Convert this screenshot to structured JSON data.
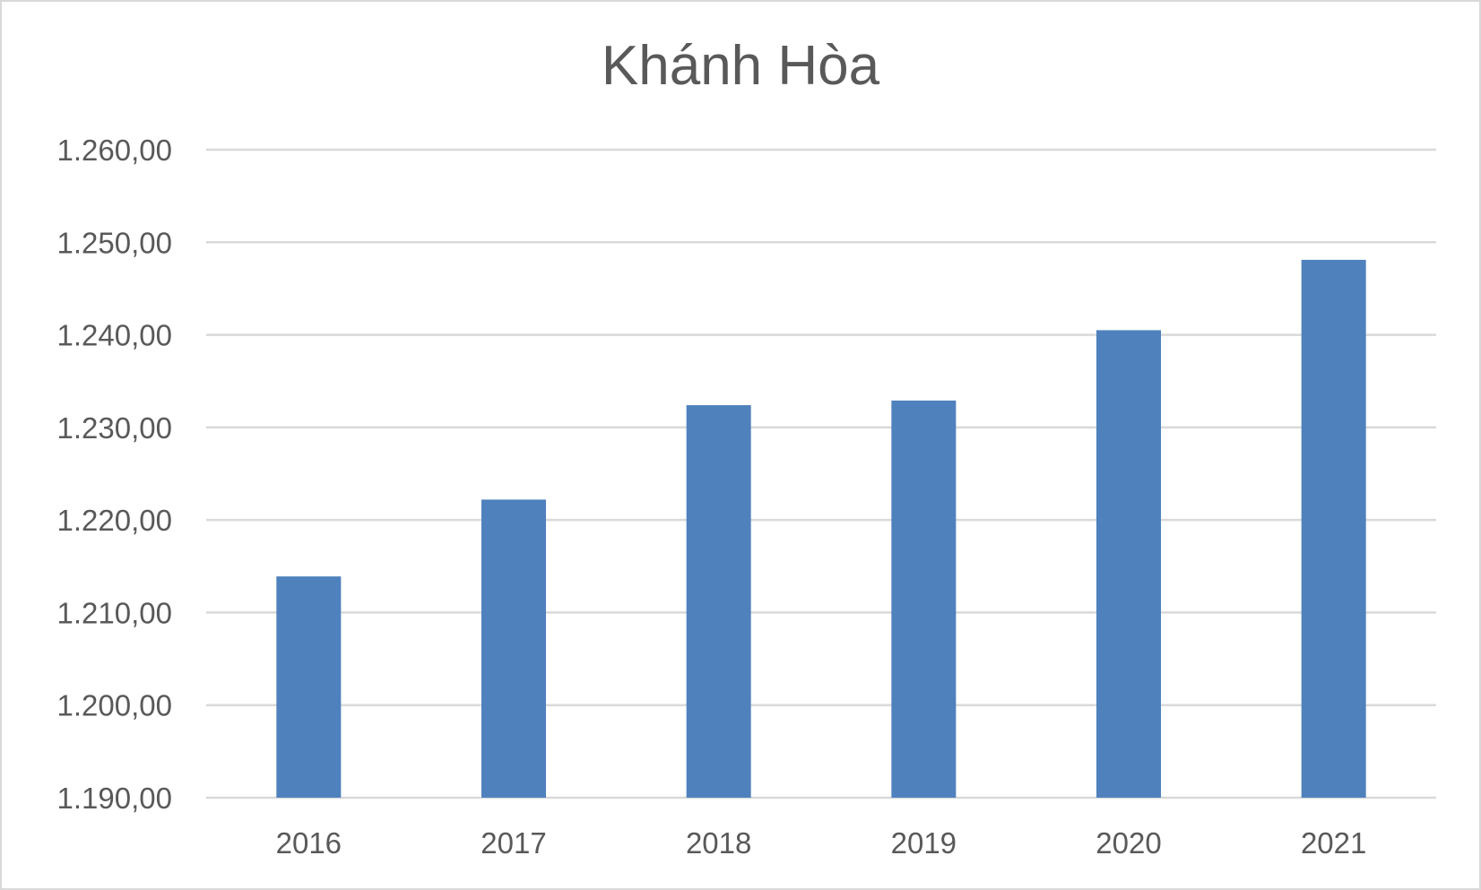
{
  "chart_data": {
    "type": "bar",
    "title": "Khánh Hòa",
    "categories": [
      "2016",
      "2017",
      "2018",
      "2019",
      "2020",
      "2021"
    ],
    "values": [
      1213.9,
      1222.2,
      1232.4,
      1232.9,
      1240.5,
      1248.1
    ],
    "ylim": [
      1190,
      1260
    ],
    "yticks": [
      1190,
      1200,
      1210,
      1220,
      1230,
      1240,
      1250,
      1260
    ],
    "ytick_labels": [
      "1.190,00",
      "1.200,00",
      "1.210,00",
      "1.220,00",
      "1.230,00",
      "1.240,00",
      "1.250,00",
      "1.260,00"
    ],
    "xlabel": "",
    "ylabel": "",
    "grid": true,
    "legend": "none",
    "bar_color": "#4f81bd"
  }
}
